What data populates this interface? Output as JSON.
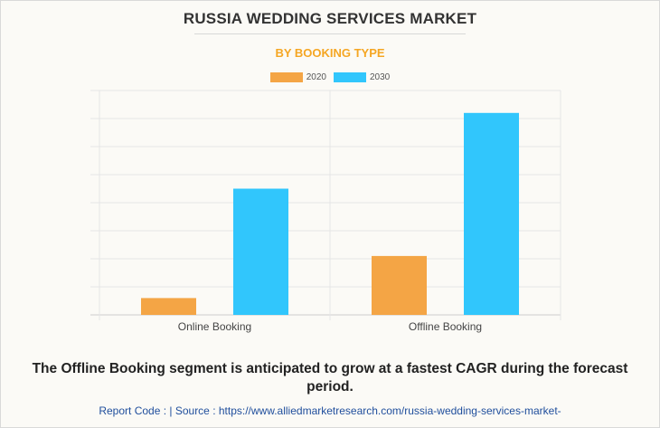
{
  "header": {
    "title": "RUSSIA WEDDING SERVICES MARKET",
    "subtitle": "BY BOOKING TYPE"
  },
  "colors": {
    "series_2020": "#f4a545",
    "series_2030": "#31c6fc",
    "subtitle": "#f5a623"
  },
  "chart_data": {
    "type": "bar",
    "categories": [
      "Online Booking",
      "Offline Booking"
    ],
    "series": [
      {
        "name": "2020",
        "values": [
          6,
          21
        ]
      },
      {
        "name": "2030",
        "values": [
          45,
          72
        ]
      }
    ],
    "ylim": [
      0,
      80
    ],
    "grid": true,
    "legend": "top-center",
    "xlabel": "",
    "ylabel": ""
  },
  "caption": "The Offline Booking segment is anticipated to grow at a fastest CAGR during the forecast period.",
  "footer": {
    "text": "Report Code :  |  Source : https://www.alliedmarketresearch.com/russia-wedding-services-market-"
  }
}
